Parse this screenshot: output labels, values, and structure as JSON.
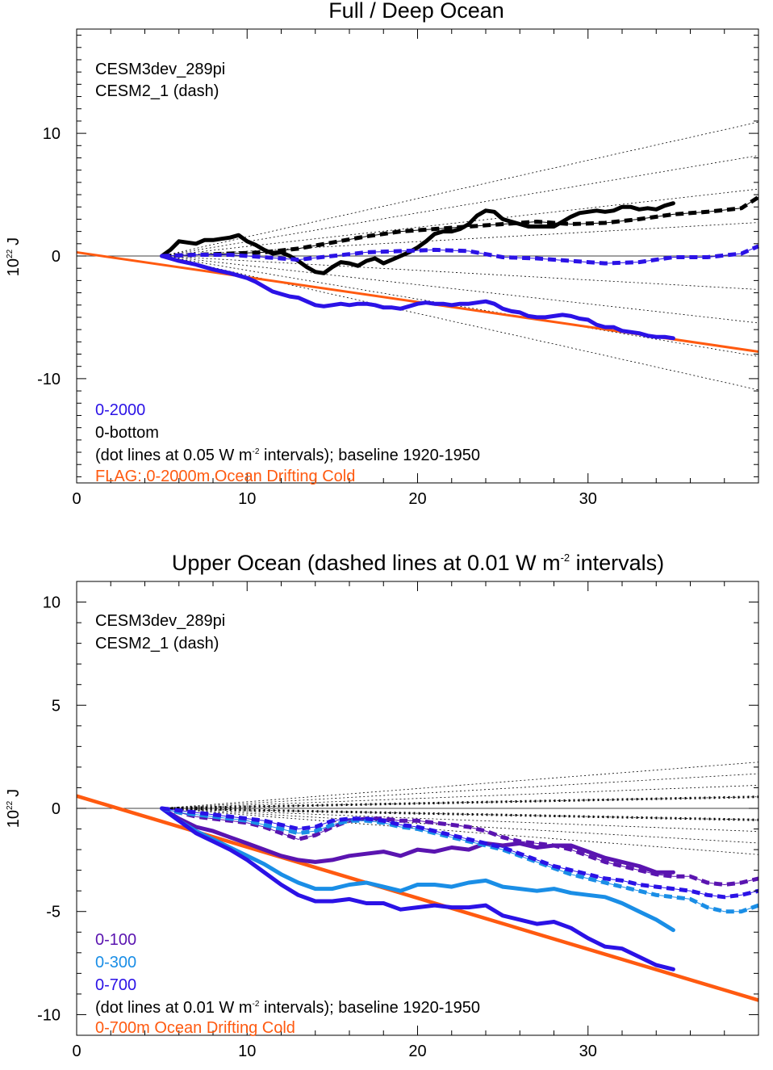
{
  "colors": {
    "black": "#000000",
    "blue": "#2b12e6",
    "purple": "#5a14b0",
    "lightblue": "#1a8ee6",
    "orange": "#ff5a10",
    "dotted": "#000000"
  },
  "chart_data": [
    {
      "type": "line",
      "title": "Full / Deep Ocean",
      "ylabel_base": "10",
      "ylabel_exp": "22",
      "ylabel_unit": "J",
      "xlim": [
        0,
        40
      ],
      "ylim": [
        -18.5,
        18.5
      ],
      "xticks": [
        0,
        10,
        20,
        30
      ],
      "yticks": [
        -10,
        0,
        10
      ],
      "yticks_labels": [
        "-10",
        "0",
        "10"
      ],
      "grid": false,
      "legend_top": [
        "CESM3dev_289pi",
        "CESM2_1 (dash)"
      ],
      "legend_bottom": [
        {
          "text": "0-2000",
          "color": "#2b12e6"
        },
        {
          "text": "0-bottom",
          "color": "#000000"
        }
      ],
      "note_pre": "(dot lines at 0.05 W m",
      "note_exp": "-2",
      "note_post": " intervals); baseline 1920-1950",
      "flag": "FLAG: 0-2000m Ocean Drifting Cold",
      "drift_line": {
        "x": [
          0,
          40
        ],
        "y": [
          0.3,
          -7.8
        ]
      },
      "reference_slopes": [
        0.312,
        0.234,
        0.156,
        0.078,
        -0.078,
        -0.156,
        -0.234,
        -0.312
      ],
      "reference_start": 5,
      "series": [
        {
          "name": "0-bottom",
          "style": "solid",
          "color": "#000000",
          "x": [
            5,
            5.5,
            6,
            6.5,
            7,
            7.5,
            8,
            8.5,
            9,
            9.5,
            10,
            10.5,
            11,
            11.5,
            12,
            12.5,
            13,
            13.5,
            14,
            14.5,
            15,
            15.5,
            16,
            16.5,
            17,
            17.5,
            18,
            18.5,
            19,
            19.5,
            20,
            20.5,
            21,
            21.5,
            22,
            22.5,
            23,
            23.5,
            24,
            24.5,
            25,
            25.5,
            26,
            26.5,
            27,
            27.5,
            28,
            28.5,
            29,
            29.5,
            30,
            30.5,
            31,
            31.5,
            32,
            32.5,
            33,
            33.5,
            34,
            34.5,
            35
          ],
          "y": [
            0.0,
            0.5,
            1.2,
            1.1,
            1.0,
            1.3,
            1.3,
            1.4,
            1.5,
            1.7,
            1.2,
            0.9,
            0.5,
            0.2,
            0.3,
            0.0,
            -0.4,
            -0.9,
            -1.3,
            -1.4,
            -0.9,
            -0.5,
            -0.6,
            -0.8,
            -0.4,
            -0.2,
            -0.6,
            -0.3,
            0.0,
            0.3,
            0.7,
            1.2,
            1.8,
            2.0,
            2.0,
            2.2,
            2.6,
            3.3,
            3.7,
            3.6,
            3.0,
            2.8,
            2.6,
            2.4,
            2.4,
            2.4,
            2.4,
            2.8,
            3.2,
            3.5,
            3.6,
            3.7,
            3.6,
            3.7,
            4.0,
            4.0,
            3.8,
            3.9,
            3.8,
            4.1,
            4.3
          ]
        },
        {
          "name": "0-bottom CESM2_1",
          "style": "dash",
          "color": "#000000",
          "x": [
            5,
            7,
            9,
            11,
            13,
            15,
            17,
            19,
            21,
            23,
            25,
            27,
            29,
            31,
            33,
            35,
            37,
            39,
            40
          ],
          "y": [
            0.0,
            0.1,
            0.2,
            0.3,
            0.6,
            1.1,
            1.6,
            2.0,
            2.2,
            2.4,
            2.6,
            2.8,
            2.6,
            2.7,
            3.0,
            3.4,
            3.6,
            3.9,
            4.8
          ]
        },
        {
          "name": "0-2000",
          "style": "solid",
          "color": "#2b12e6",
          "x": [
            5,
            6,
            7,
            8,
            9,
            10,
            10.5,
            11,
            11.5,
            12,
            12.5,
            13,
            13.5,
            14,
            14.5,
            15,
            15.5,
            16,
            16.5,
            17,
            17.5,
            18,
            18.5,
            19,
            19.5,
            20,
            20.5,
            21,
            21.5,
            22,
            22.5,
            23,
            23.5,
            24,
            24.5,
            25,
            25.5,
            26,
            26.5,
            27,
            27.5,
            28,
            28.5,
            29,
            29.5,
            30,
            30.5,
            31,
            31.5,
            32,
            32.5,
            33,
            33.5,
            34,
            34.5,
            35
          ],
          "y": [
            0.0,
            -0.4,
            -0.7,
            -1.1,
            -1.4,
            -1.8,
            -2.1,
            -2.5,
            -2.9,
            -3.1,
            -3.3,
            -3.4,
            -3.7,
            -4.0,
            -4.1,
            -4.0,
            -3.9,
            -4.0,
            -3.9,
            -3.9,
            -4.0,
            -4.2,
            -4.2,
            -4.3,
            -4.1,
            -3.9,
            -3.8,
            -3.9,
            -3.9,
            -4.0,
            -3.9,
            -3.9,
            -3.8,
            -3.7,
            -3.9,
            -4.3,
            -4.5,
            -4.6,
            -4.9,
            -5.0,
            -5.0,
            -4.9,
            -4.8,
            -4.9,
            -5.1,
            -5.2,
            -5.6,
            -5.8,
            -5.8,
            -6.1,
            -6.2,
            -6.3,
            -6.5,
            -6.6,
            -6.6,
            -6.7
          ]
        },
        {
          "name": "0-2000 CESM2_1",
          "style": "dash",
          "color": "#2b12e6",
          "x": [
            5,
            7,
            9,
            11,
            13,
            15,
            17,
            19,
            21,
            23,
            25,
            27,
            29,
            31,
            33,
            35,
            37,
            39,
            40
          ],
          "y": [
            0.0,
            0.1,
            0.1,
            -0.1,
            -0.3,
            0.0,
            0.3,
            0.4,
            0.5,
            0.4,
            -0.1,
            -0.2,
            -0.4,
            -0.6,
            -0.5,
            -0.1,
            -0.1,
            0.2,
            0.8
          ]
        }
      ]
    },
    {
      "type": "line",
      "title_pre": "Upper Ocean (dashed lines at 0.01 W m",
      "title_exp": "-2",
      "title_post": " intervals)",
      "ylabel_base": "10",
      "ylabel_exp": "22",
      "ylabel_unit": "J",
      "xlim": [
        0,
        40
      ],
      "ylim": [
        -11,
        11
      ],
      "xticks": [
        0,
        10,
        20,
        30
      ],
      "yticks": [
        -10,
        -5,
        0,
        5,
        10
      ],
      "yticks_labels": [
        "-10",
        "-5",
        "0",
        "5",
        "10"
      ],
      "grid": false,
      "legend_top": [
        "CESM3dev_289pi",
        "CESM2_1 (dash)"
      ],
      "legend_bottom": [
        {
          "text": "0-100",
          "color": "#5a14b0"
        },
        {
          "text": "0-300",
          "color": "#1a8ee6"
        },
        {
          "text": "0-700",
          "color": "#2b12e6"
        }
      ],
      "note_pre": "(dot lines at 0.01 W m",
      "note_exp": "-2",
      "note_post": " intervals); baseline 1920-1950",
      "flag": "0-700m Ocean Drifting Cold",
      "drift_line": {
        "x": [
          0,
          40
        ],
        "y": [
          0.6,
          -9.3
        ]
      },
      "reference_slopes": [
        0.064,
        0.048,
        0.032,
        0.016,
        -0.016,
        -0.032,
        -0.048,
        -0.064
      ],
      "reference_start": 5,
      "series": [
        {
          "name": "0-100",
          "style": "solid",
          "color": "#5a14b0",
          "x": [
            5,
            6,
            7,
            8,
            9,
            10,
            11,
            12,
            13,
            14,
            15,
            16,
            17,
            18,
            19,
            20,
            21,
            22,
            23,
            24,
            25,
            26,
            27,
            28,
            29,
            30,
            31,
            32,
            33,
            34,
            35
          ],
          "y": [
            0.0,
            -0.5,
            -0.9,
            -1.1,
            -1.4,
            -1.7,
            -2.0,
            -2.3,
            -2.5,
            -2.6,
            -2.5,
            -2.3,
            -2.2,
            -2.1,
            -2.3,
            -2.0,
            -2.1,
            -1.9,
            -2.0,
            -1.7,
            -1.8,
            -1.7,
            -1.9,
            -1.8,
            -1.8,
            -2.1,
            -2.4,
            -2.6,
            -2.8,
            -3.1,
            -3.1
          ]
        },
        {
          "name": "0-300",
          "style": "solid",
          "color": "#1a8ee6",
          "x": [
            5,
            6,
            7,
            8,
            9,
            10,
            11,
            12,
            13,
            14,
            15,
            16,
            17,
            18,
            19,
            20,
            21,
            22,
            23,
            24,
            25,
            26,
            27,
            28,
            29,
            30,
            31,
            32,
            33,
            34,
            35
          ],
          "y": [
            0.0,
            -0.6,
            -1.1,
            -1.5,
            -1.9,
            -2.3,
            -2.7,
            -3.2,
            -3.6,
            -3.9,
            -3.9,
            -3.7,
            -3.6,
            -3.8,
            -4.0,
            -3.7,
            -3.7,
            -3.8,
            -3.6,
            -3.5,
            -3.8,
            -3.9,
            -4.0,
            -3.9,
            -4.1,
            -4.2,
            -4.3,
            -4.6,
            -5.0,
            -5.4,
            -5.9
          ]
        },
        {
          "name": "0-700",
          "style": "solid",
          "color": "#2b12e6",
          "x": [
            5,
            6,
            7,
            8,
            9,
            10,
            11,
            12,
            13,
            14,
            15,
            16,
            17,
            18,
            19,
            20,
            21,
            22,
            23,
            24,
            25,
            26,
            27,
            28,
            29,
            30,
            31,
            32,
            33,
            34,
            35
          ],
          "y": [
            0.0,
            -0.6,
            -1.2,
            -1.6,
            -2.0,
            -2.5,
            -3.1,
            -3.7,
            -4.2,
            -4.5,
            -4.5,
            -4.4,
            -4.6,
            -4.6,
            -4.9,
            -4.8,
            -4.7,
            -4.8,
            -4.8,
            -4.7,
            -5.2,
            -5.4,
            -5.6,
            -5.5,
            -5.8,
            -6.3,
            -6.7,
            -6.8,
            -7.2,
            -7.6,
            -7.8
          ]
        },
        {
          "name": "0-100 CESM2_1",
          "style": "dash",
          "color": "#5a14b0",
          "x": [
            5,
            6,
            7,
            8,
            9,
            10,
            11,
            12,
            13,
            14,
            15,
            16,
            17,
            18,
            19,
            20,
            21,
            22,
            23,
            24,
            25,
            26,
            27,
            28,
            29,
            30,
            31,
            32,
            33,
            34,
            35,
            36,
            37,
            38,
            39,
            40
          ],
          "y": [
            0.0,
            -0.2,
            -0.4,
            -0.5,
            -0.6,
            -0.7,
            -0.9,
            -1.2,
            -1.5,
            -1.3,
            -0.9,
            -0.6,
            -0.5,
            -0.5,
            -0.6,
            -0.6,
            -0.7,
            -0.8,
            -0.9,
            -1.1,
            -1.4,
            -1.6,
            -1.7,
            -1.8,
            -2.0,
            -2.3,
            -2.6,
            -2.8,
            -3.0,
            -3.2,
            -3.3,
            -3.3,
            -3.6,
            -3.7,
            -3.6,
            -3.4
          ]
        },
        {
          "name": "0-300 CESM2_1",
          "style": "dash",
          "color": "#1a8ee6",
          "x": [
            5,
            6,
            7,
            8,
            9,
            10,
            11,
            12,
            13,
            14,
            15,
            16,
            17,
            18,
            19,
            20,
            21,
            22,
            23,
            24,
            25,
            26,
            27,
            28,
            29,
            30,
            31,
            32,
            33,
            34,
            35,
            36,
            37,
            38,
            39,
            40
          ],
          "y": [
            0.0,
            -0.2,
            -0.3,
            -0.4,
            -0.5,
            -0.6,
            -0.8,
            -1.0,
            -1.2,
            -1.1,
            -0.8,
            -0.6,
            -0.6,
            -0.7,
            -0.9,
            -1.0,
            -1.2,
            -1.4,
            -1.6,
            -1.8,
            -2.0,
            -2.3,
            -2.6,
            -2.9,
            -3.2,
            -3.4,
            -3.6,
            -3.8,
            -4.0,
            -4.2,
            -4.3,
            -4.4,
            -4.8,
            -5.0,
            -5.0,
            -4.7
          ]
        },
        {
          "name": "0-700 CESM2_1",
          "style": "dash",
          "color": "#2b12e6",
          "x": [
            5,
            6,
            7,
            8,
            9,
            10,
            11,
            12,
            13,
            14,
            15,
            16,
            17,
            18,
            19,
            20,
            21,
            22,
            23,
            24,
            25,
            26,
            27,
            28,
            29,
            30,
            31,
            32,
            33,
            34,
            35,
            36,
            37,
            38,
            39,
            40
          ],
          "y": [
            0.0,
            -0.1,
            -0.2,
            -0.3,
            -0.4,
            -0.5,
            -0.6,
            -0.8,
            -1.0,
            -0.9,
            -0.6,
            -0.5,
            -0.5,
            -0.6,
            -0.8,
            -0.9,
            -1.1,
            -1.3,
            -1.5,
            -1.7,
            -1.9,
            -2.2,
            -2.5,
            -2.8,
            -3.0,
            -3.2,
            -3.4,
            -3.5,
            -3.7,
            -3.8,
            -3.9,
            -4.0,
            -4.2,
            -4.3,
            -4.2,
            -4.0
          ]
        }
      ]
    }
  ]
}
